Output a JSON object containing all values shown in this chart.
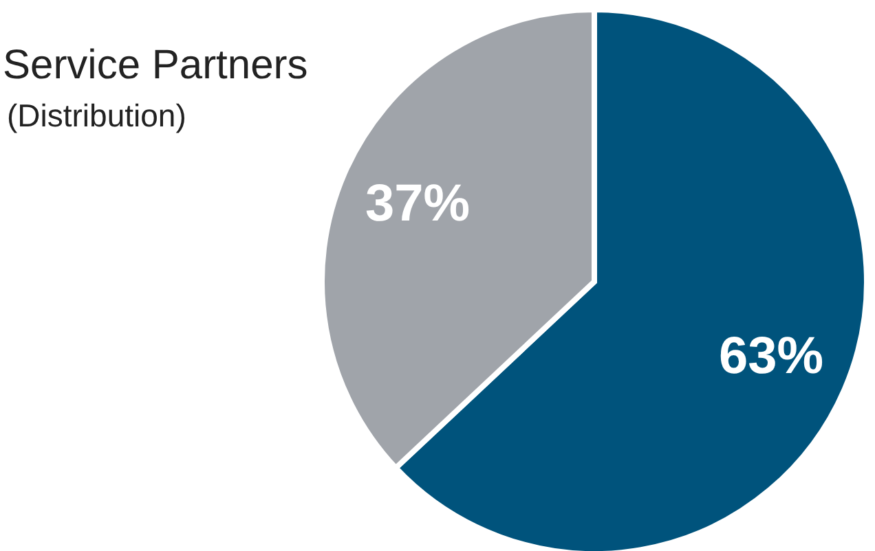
{
  "chart_data": {
    "type": "pie",
    "categories": [
      null,
      "Service Partners"
    ],
    "values": [
      63,
      37
    ],
    "colors": [
      "#00537c",
      "#a0a4aa"
    ],
    "value_labels": [
      "63%",
      "37%"
    ],
    "annotations": [
      "(Distribution)"
    ]
  }
}
